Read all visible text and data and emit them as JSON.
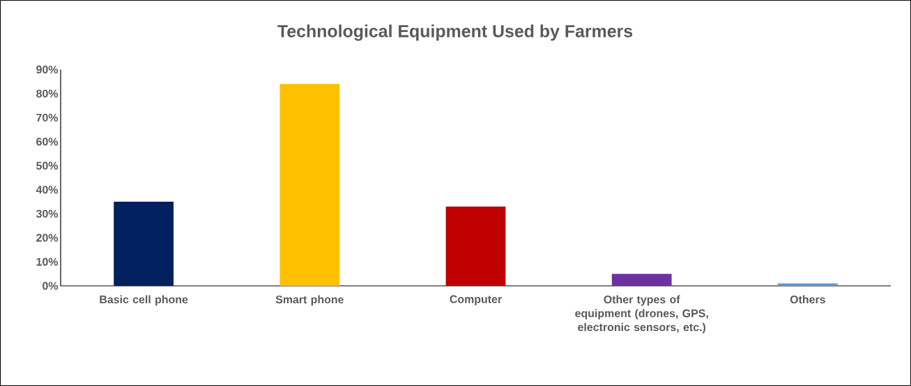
{
  "chart_data": {
    "type": "bar",
    "title": "Technological Equipment Used by Farmers",
    "categories": [
      "Basic cell phone",
      "Smart phone",
      "Computer",
      "Other types of equipment (drones, GPS, electronic sensors, etc.)",
      "Others"
    ],
    "values": [
      35,
      84,
      33,
      5,
      1
    ],
    "colors": [
      "#002060",
      "#ffc000",
      "#c00000",
      "#7030a0",
      "#5b9bd5"
    ],
    "ylim": [
      0,
      90
    ],
    "yticks": [
      {
        "value": 0,
        "label": "0%"
      },
      {
        "value": 10,
        "label": "10%"
      },
      {
        "value": 20,
        "label": "20%"
      },
      {
        "value": 30,
        "label": "30%"
      },
      {
        "value": 40,
        "label": "40%"
      },
      {
        "value": 50,
        "label": "50%"
      },
      {
        "value": 60,
        "label": "60%"
      },
      {
        "value": 70,
        "label": "70%"
      },
      {
        "value": 80,
        "label": "80%"
      },
      {
        "value": 90,
        "label": "90%"
      }
    ]
  }
}
